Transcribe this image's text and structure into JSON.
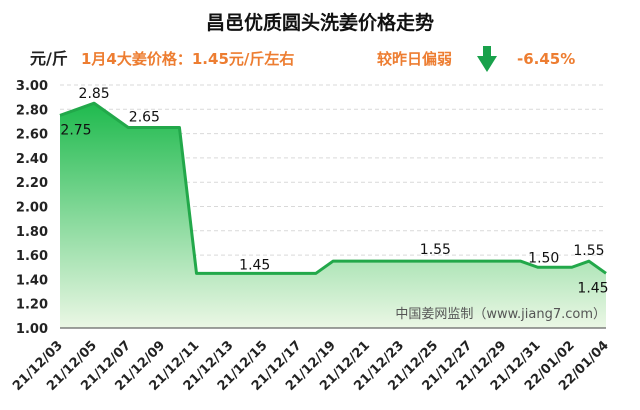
{
  "header": {
    "title": "昌邑优质圆头洗姜价格走势",
    "unit_label": "元/斤",
    "today_price": "1月4大姜价格：1.45元/斤左右",
    "change_label": "较昨日偏弱",
    "change_value": "-6.45%"
  },
  "chart_data": {
    "type": "area",
    "title": "昌邑优质圆头洗姜价格走势",
    "xlabel": "",
    "ylabel": "元/斤",
    "ylim": [
      1.0,
      3.0
    ],
    "ytick_labels": [
      "1.00",
      "1.20",
      "1.40",
      "1.60",
      "1.80",
      "2.00",
      "2.20",
      "2.40",
      "2.60",
      "2.80",
      "3.00"
    ],
    "x_tick_labels": [
      "21/12/03",
      "21/12/05",
      "21/12/07",
      "21/12/09",
      "21/12/11",
      "21/12/13",
      "21/12/15",
      "21/12/17",
      "21/12/19",
      "21/12/21",
      "21/12/23",
      "21/12/25",
      "21/12/27",
      "21/12/29",
      "21/12/31",
      "22/01/02",
      "22/01/04"
    ],
    "x": [
      "21/12/03",
      "21/12/04",
      "21/12/05",
      "21/12/06",
      "21/12/07",
      "21/12/08",
      "21/12/09",
      "21/12/10",
      "21/12/11",
      "21/12/12",
      "21/12/13",
      "21/12/14",
      "21/12/15",
      "21/12/16",
      "21/12/17",
      "21/12/18",
      "21/12/19",
      "21/12/20",
      "21/12/21",
      "21/12/22",
      "21/12/23",
      "21/12/24",
      "21/12/25",
      "21/12/26",
      "21/12/27",
      "21/12/28",
      "21/12/29",
      "21/12/30",
      "21/12/31",
      "22/01/01",
      "22/01/02",
      "22/01/03",
      "22/01/04"
    ],
    "values": [
      2.75,
      2.8,
      2.85,
      2.75,
      2.65,
      2.65,
      2.65,
      2.65,
      1.45,
      1.45,
      1.45,
      1.45,
      1.45,
      1.45,
      1.45,
      1.45,
      1.55,
      1.55,
      1.55,
      1.55,
      1.55,
      1.55,
      1.55,
      1.55,
      1.55,
      1.55,
      1.55,
      1.55,
      1.5,
      1.5,
      1.5,
      1.55,
      1.45
    ],
    "data_labels": [
      {
        "x": "21/12/03",
        "text": "2.75"
      },
      {
        "x": "21/12/05",
        "text": "2.85"
      },
      {
        "x": "21/12/09",
        "text": "2.65"
      },
      {
        "x": "21/12/15",
        "text": "1.45"
      },
      {
        "x": "21/12/25",
        "text": "1.55"
      },
      {
        "x": "21/12/31",
        "text": "1.50"
      },
      {
        "x": "22/01/03",
        "text": "1.55"
      },
      {
        "x": "22/01/04",
        "text": "1.45"
      }
    ],
    "grid": true,
    "watermark": "中国姜网监制（www.jiang7.com）",
    "colors": {
      "line": "#22a84a",
      "fill_top": "#1fba4e",
      "fill_bottom": "#ebf7e5",
      "info": "#ed7d31",
      "arrow": "#19a14b"
    }
  }
}
